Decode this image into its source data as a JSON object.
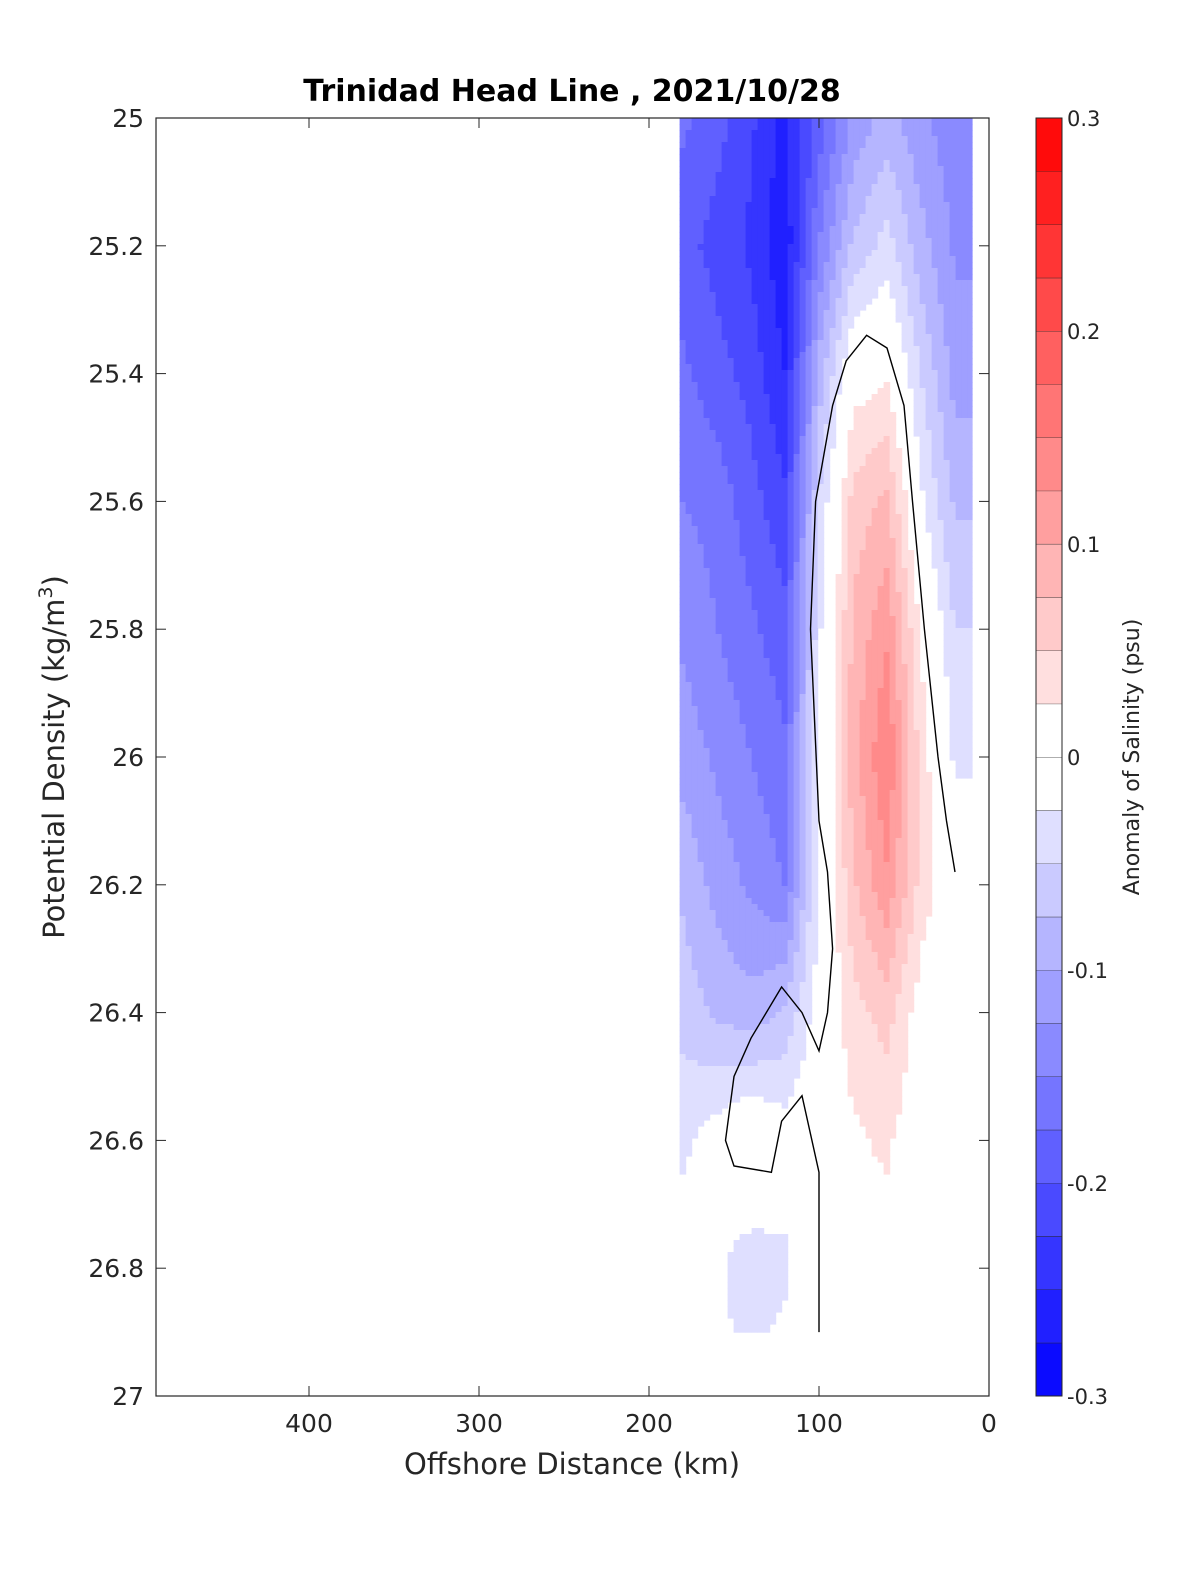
{
  "chart_data": {
    "type": "contour",
    "title": "Trinidad Head Line , 2021/10/28",
    "xlabel": "Offshore Distance (km)",
    "ylabel_main": "Potential Density (kg/m",
    "ylabel_sup": "3",
    "ylabel_close": ")",
    "x_axis": {
      "range": [
        490,
        0
      ],
      "reversed": true,
      "ticks": [
        400,
        300,
        200,
        100,
        0
      ]
    },
    "y_axis": {
      "range": [
        25,
        27
      ],
      "reversed": true,
      "ticks": [
        25,
        25.2,
        25.4,
        25.6,
        25.8,
        26,
        26.2,
        26.4,
        26.6,
        26.8,
        27
      ]
    },
    "colorbar": {
      "label": "Anomaly of Salinity (psu)",
      "range": [
        -0.3,
        0.3
      ],
      "ticks": [
        0.3,
        0.2,
        0.1,
        0,
        -0.1,
        -0.2,
        -0.3
      ],
      "step": 0.025,
      "low_color": "#0000ff",
      "mid_color": "#ffffff",
      "high_color": "#ff0000"
    },
    "data_extent_x": [
      182,
      10
    ],
    "stations_x": [
      180,
      160,
      140,
      120,
      100,
      80,
      60,
      40,
      20
    ],
    "sigma_levels": [
      25.0,
      25.2,
      25.4,
      25.6,
      25.8,
      26.0,
      26.2,
      26.4,
      26.6,
      26.8,
      26.9
    ],
    "anomaly_grid": [
      [
        -0.17,
        -0.19,
        -0.22,
        -0.26,
        -0.19,
        -0.12,
        -0.09,
        -0.12,
        -0.14
      ],
      [
        -0.19,
        -0.21,
        -0.23,
        -0.27,
        -0.15,
        -0.07,
        -0.04,
        -0.09,
        -0.13
      ],
      [
        -0.17,
        -0.19,
        -0.21,
        -0.25,
        -0.09,
        0.01,
        0.02,
        -0.05,
        -0.11
      ],
      [
        -0.15,
        -0.16,
        -0.19,
        -0.22,
        -0.05,
        0.06,
        0.08,
        -0.02,
        -0.08
      ],
      [
        -0.13,
        -0.15,
        -0.17,
        -0.19,
        -0.03,
        0.08,
        0.12,
        0.02,
        -0.05
      ],
      [
        -0.11,
        -0.13,
        -0.15,
        -0.17,
        -0.02,
        0.09,
        0.15,
        0.04,
        -0.03
      ],
      [
        -0.08,
        -0.11,
        -0.13,
        -0.15,
        -0.02,
        0.07,
        0.12,
        0.04,
        0.0
      ],
      [
        -0.06,
        -0.08,
        -0.09,
        -0.07,
        -0.01,
        0.04,
        0.06,
        0.01,
        -0.01
      ],
      [
        -0.03,
        -0.01,
        0.01,
        -0.01,
        0.01,
        0.02,
        0.03,
        0.0,
        0.01
      ],
      [
        -0.01,
        -0.02,
        -0.04,
        -0.03,
        0.01,
        0.02,
        0.01,
        0.0,
        0.0
      ],
      [
        0.0,
        -0.02,
        -0.03,
        -0.02,
        0.01,
        0.01,
        0.0,
        0.0,
        0.0
      ]
    ],
    "zero_contour": [
      [
        100,
        26.9
      ],
      [
        100,
        26.65
      ],
      [
        110,
        26.53
      ],
      [
        122,
        26.57
      ],
      [
        128,
        26.65
      ],
      [
        150,
        26.64
      ],
      [
        155,
        26.6
      ],
      [
        150,
        26.5
      ],
      [
        140,
        26.44
      ],
      [
        122,
        26.36
      ],
      [
        110,
        26.4
      ],
      [
        100,
        26.46
      ],
      [
        95,
        26.4
      ],
      [
        92,
        26.3
      ],
      [
        95,
        26.18
      ],
      [
        100,
        26.1
      ],
      [
        105,
        25.8
      ],
      [
        102,
        25.6
      ],
      [
        92,
        25.45
      ],
      [
        84,
        25.38
      ],
      [
        72,
        25.34
      ],
      [
        60,
        25.36
      ],
      [
        50,
        25.45
      ],
      [
        45,
        25.6
      ],
      [
        38,
        25.8
      ],
      [
        30,
        26.0
      ],
      [
        25,
        26.1
      ],
      [
        20,
        26.18
      ]
    ]
  }
}
